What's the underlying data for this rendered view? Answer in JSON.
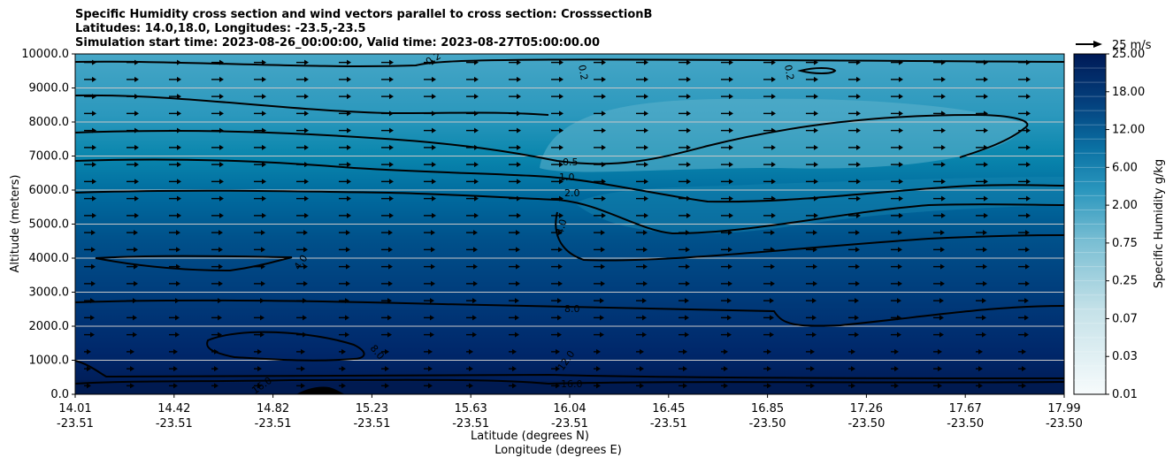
{
  "title_lines": [
    "Specific Humidity cross section and wind vectors parallel to cross section: CrosssectionB",
    "Latitudes: 14.0,18.0, Longitudes: -23.5,-23.5",
    "Simulation start time: 2023-08-26_00:00:00, Valid time: 2023-08-27T05:00:00.00"
  ],
  "colors": {
    "dark": "#00215c",
    "mid": "#00578f",
    "light": "#58aec8",
    "contour": "#000000",
    "grid": "#c8c8c8"
  },
  "chart_data": {
    "type": "contour",
    "variable": "Specific Humidity",
    "units": "g/kg",
    "xlabel": "Latitude (degrees N)",
    "xlabel2": "Longitude (degrees E)",
    "ylabel": "Altitude (meters)",
    "ylim": [
      0,
      10000
    ],
    "y_ticks": [
      "0.0",
      "1000.0",
      "2000.0",
      "3000.0",
      "4000.0",
      "5000.0",
      "6000.0",
      "7000.0",
      "8000.0",
      "9000.0",
      "10000.0"
    ],
    "x_ticks": [
      {
        "lat": "14.01",
        "lon": "-23.51"
      },
      {
        "lat": "14.42",
        "lon": "-23.51"
      },
      {
        "lat": "14.82",
        "lon": "-23.51"
      },
      {
        "lat": "15.23",
        "lon": "-23.51"
      },
      {
        "lat": "15.63",
        "lon": "-23.51"
      },
      {
        "lat": "16.04",
        "lon": "-23.51"
      },
      {
        "lat": "16.45",
        "lon": "-23.51"
      },
      {
        "lat": "16.85",
        "lon": "-23.50"
      },
      {
        "lat": "17.26",
        "lon": "-23.50"
      },
      {
        "lat": "17.67",
        "lon": "-23.50"
      },
      {
        "lat": "17.99",
        "lon": "-23.50"
      }
    ],
    "colorbar": {
      "label": "Specific Humidity g/kg",
      "tick_labels": [
        "0.01",
        "0.03",
        "0.07",
        "0.25",
        "0.75",
        "2.00",
        "6.00",
        "12.00",
        "18.00",
        "25.00"
      ]
    },
    "quiver_key": "25 m/s",
    "contour_labels": [
      "0.2",
      "0.2",
      "0.2",
      "0.5",
      "1.0",
      "2.0",
      "4.0",
      "4.0",
      "8.0",
      "8.0",
      "12.0",
      "16.0",
      "16.0"
    ]
  }
}
